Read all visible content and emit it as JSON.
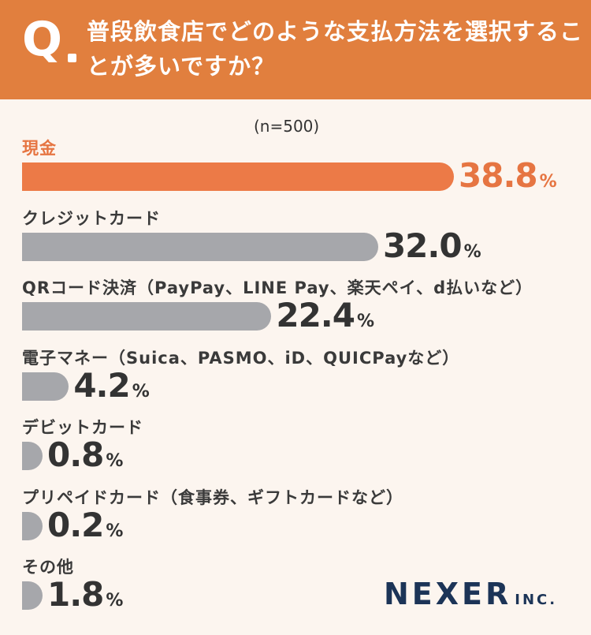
{
  "header": {
    "q_mark": "Q",
    "question": "普段飲食店でどのような支払方法を選択することが多いですか？"
  },
  "sample_size": "(n=500)",
  "percent_sign": "%",
  "logo": {
    "main": "NEXER",
    "sub": "INC."
  },
  "colors": {
    "header_bg": "#e17f3e",
    "highlight": "#ec7a47",
    "bar_gray": "#a6a7ab",
    "background": "#fcf5ef",
    "logo": "#1c3457"
  },
  "chart_data": {
    "type": "bar",
    "orientation": "horizontal",
    "categories": [
      "現金",
      "クレジットカード",
      "QRコード決済（PayPay、LINE Pay、楽天ペイ、d払いなど）",
      "電子マネー（Suica、PASMO、iD、QUICPayなど）",
      "デビットカード",
      "プリペイドカード（食事券、ギフトカードなど）",
      "その他"
    ],
    "values": [
      38.8,
      32.0,
      22.4,
      4.2,
      0.8,
      0.2,
      1.8
    ],
    "value_labels": [
      "38.8",
      "32.0",
      "22.4",
      "4.2",
      "0.8",
      "0.2",
      "1.8"
    ],
    "unit": "%",
    "highlight_index": 0
  }
}
